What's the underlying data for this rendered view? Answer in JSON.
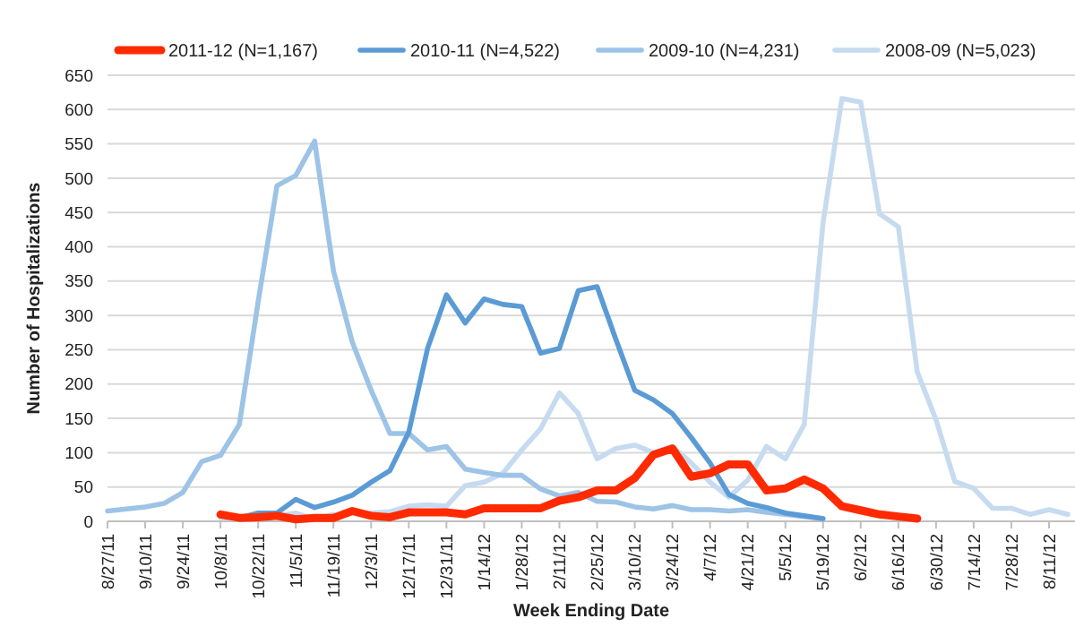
{
  "chart_data": {
    "type": "line",
    "xlabel": "Week Ending Date",
    "ylabel": "Number of Hospitalizations",
    "categories": [
      "8/27/11",
      null,
      "9/10/11",
      null,
      "9/24/11",
      null,
      "10/8/11",
      null,
      "10/22/11",
      null,
      "11/5/11",
      null,
      "11/19/11",
      null,
      "12/3/11",
      null,
      "12/17/11",
      null,
      "12/31/11",
      null,
      "1/14/12",
      null,
      "1/28/12",
      null,
      "2/11/12",
      null,
      "2/25/12",
      null,
      "3/10/12",
      null,
      "3/24/12",
      null,
      "4/7/12",
      null,
      "4/21/12",
      null,
      "5/5/12",
      null,
      "5/19/12",
      null,
      "6/2/12",
      null,
      "6/16/12",
      null,
      "6/30/12",
      null,
      "7/14/12",
      null,
      "7/28/12",
      null,
      "8/11/12",
      null
    ],
    "series": [
      {
        "name": "2011-12 (N=1,167)",
        "color": "#ff2a00",
        "values": [
          null,
          null,
          null,
          null,
          null,
          null,
          10,
          5,
          6,
          8,
          3,
          5,
          5,
          15,
          8,
          6,
          13,
          13,
          13,
          10,
          19,
          19,
          19,
          19,
          30,
          35,
          45,
          45,
          63,
          97,
          106,
          65,
          70,
          83,
          83,
          45,
          48,
          61,
          48,
          22,
          16,
          10,
          7,
          4,
          null,
          null,
          null,
          null,
          null,
          null,
          null,
          null
        ]
      },
      {
        "name": "2010-11 (N=4,522)",
        "color": "#5b9bd5",
        "values": [
          null,
          null,
          null,
          null,
          null,
          null,
          9,
          5,
          12,
          12,
          32,
          20,
          28,
          38,
          57,
          74,
          130,
          252,
          330,
          289,
          324,
          316,
          313,
          245,
          252,
          336,
          342,
          265,
          191,
          177,
          157,
          122,
          85,
          39,
          26,
          20,
          12,
          8,
          4,
          null,
          null,
          null,
          null,
          null,
          null,
          null,
          null,
          null,
          null,
          null,
          null,
          null
        ]
      },
      {
        "name": "2009-10 (N=4,231)",
        "color": "#9dc3e6",
        "values": [
          15,
          18,
          21,
          26,
          42,
          87,
          96,
          141,
          320,
          489,
          504,
          554,
          365,
          261,
          191,
          128,
          128,
          104,
          109,
          76,
          71,
          67,
          67,
          47,
          37,
          42,
          29,
          28,
          21,
          18,
          23,
          17,
          17,
          15,
          17,
          13,
          10,
          7,
          4,
          null,
          null,
          null,
          null,
          null,
          null,
          null,
          null,
          null,
          null,
          null,
          null,
          null
        ]
      },
      {
        "name": "2008-09 (N=5,023)",
        "color": "#c6dbf0",
        "values": [
          null,
          null,
          null,
          null,
          null,
          null,
          5,
          3,
          4,
          8,
          12,
          3,
          10,
          null,
          12,
          14,
          22,
          24,
          22,
          52,
          57,
          70,
          104,
          135,
          187,
          157,
          91,
          106,
          111,
          100,
          109,
          85,
          57,
          35,
          60,
          109,
          91,
          141,
          435,
          616,
          611,
          448,
          429,
          218,
          148,
          58,
          48,
          19,
          19,
          10,
          17,
          10
        ]
      }
    ],
    "ylim": [
      0,
      650
    ],
    "yticks": [
      0,
      50,
      100,
      150,
      200,
      250,
      300,
      350,
      400,
      450,
      500,
      550,
      600,
      650
    ],
    "grid": "y",
    "legend": "top",
    "marker": "none",
    "line_style": "solid"
  }
}
